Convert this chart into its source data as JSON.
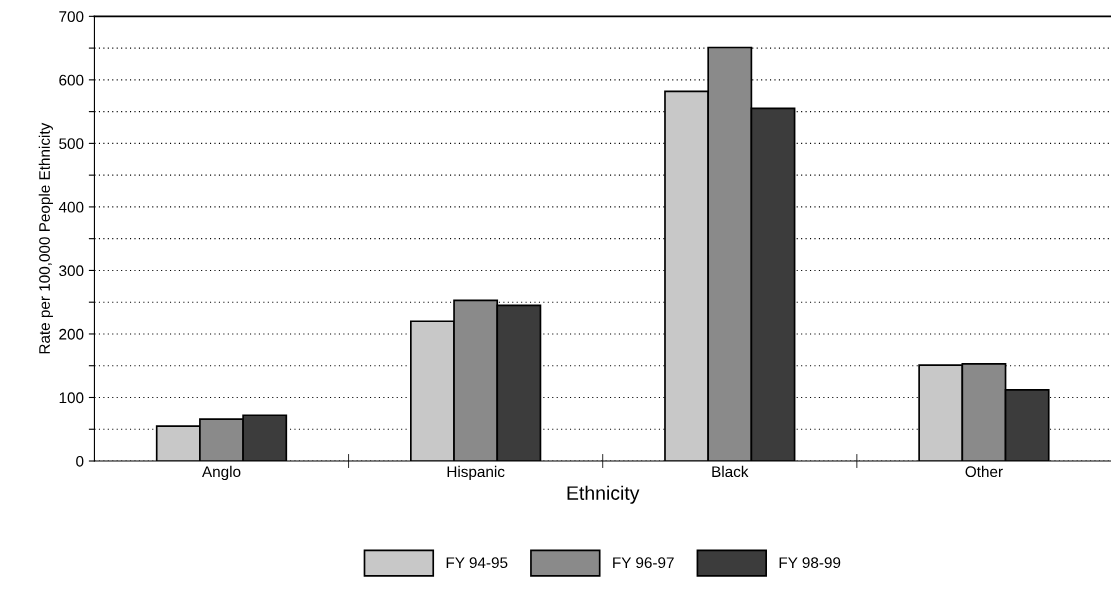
{
  "chart_data": {
    "type": "bar",
    "xlabel": "Ethnicity",
    "ylabel": "Rate per 100,000 People Ethnicity",
    "categories": [
      "Anglo",
      "Hispanic",
      "Black",
      "Other"
    ],
    "series": [
      {
        "name": "FY 94-95",
        "color": "#c8c8c8",
        "values": [
          55,
          220,
          582,
          151
        ]
      },
      {
        "name": "FY 96-97",
        "color": "#8a8a8a",
        "values": [
          66,
          253,
          651,
          153
        ]
      },
      {
        "name": "FY 98-99",
        "color": "#3c3c3c",
        "values": [
          72,
          245,
          555,
          112
        ]
      }
    ],
    "ylim": [
      0,
      700
    ],
    "yticks": [
      0,
      {
        "value": 50,
        "label": null
      },
      100,
      {
        "value": 150,
        "label": null
      },
      200,
      {
        "value": 250,
        "label": null
      },
      300,
      {
        "value": 350,
        "label": null
      },
      400,
      {
        "value": 450,
        "label": null
      },
      500,
      {
        "value": 550,
        "label": null
      },
      600,
      {
        "value": 650,
        "label": null
      },
      700
    ],
    "grid": "y",
    "legend": "bottom"
  }
}
